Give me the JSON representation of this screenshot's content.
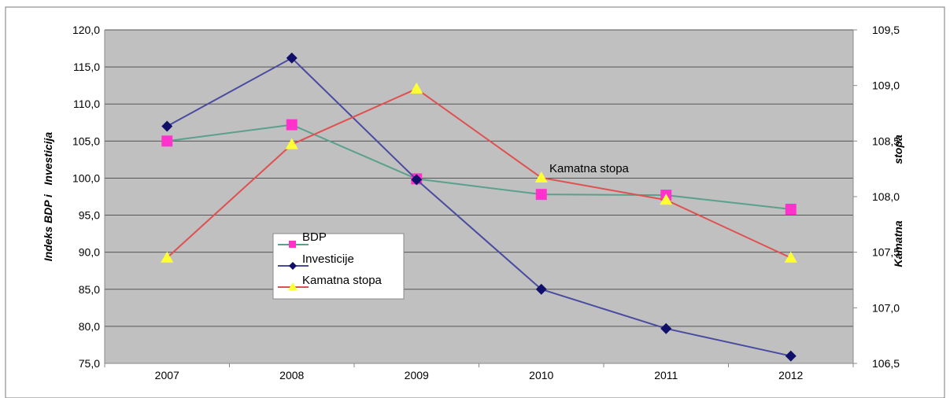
{
  "chart_data": {
    "type": "line",
    "categories": [
      "2007",
      "2008",
      "2009",
      "2010",
      "2011",
      "2012"
    ],
    "left_axis": {
      "label": "Indeks BDP i   Investicija",
      "ylim": [
        75,
        120
      ],
      "ticks": [
        "120,0",
        "115,0",
        "110,0",
        "105,0",
        "100,0",
        "95,0",
        "90,0",
        "85,0",
        "80,0",
        "75,0"
      ]
    },
    "right_axis": {
      "label_top": "stopa",
      "label_bottom": "Kamatna",
      "ylim": [
        106.5,
        109.5
      ],
      "ticks": [
        "109,5",
        "109,0",
        "108,5",
        "108,0",
        "107,5",
        "107,0",
        "106,5"
      ]
    },
    "series": [
      {
        "name": "BDP",
        "axis": "left",
        "color": "#5aa08c",
        "marker": "square",
        "marker_color": "#ff33cc",
        "values": [
          105.0,
          107.2,
          99.9,
          97.8,
          97.7,
          95.8
        ]
      },
      {
        "name": "Investicije",
        "axis": "left",
        "color": "#4a4aa0",
        "marker": "diamond",
        "marker_color": "#10106a",
        "values": [
          107.0,
          116.2,
          99.8,
          85.0,
          79.7,
          76.0
        ]
      },
      {
        "name": "Kamatna stopa",
        "axis": "right",
        "color": "#e05050",
        "marker": "triangle",
        "marker_color": "#ffff33",
        "values": [
          107.45,
          108.47,
          108.97,
          108.17,
          107.97,
          107.45
        ]
      }
    ],
    "annotation": "Kamatna stopa",
    "grid": true,
    "plot_background": "#c0c0c0",
    "legend_position": "center-left"
  }
}
